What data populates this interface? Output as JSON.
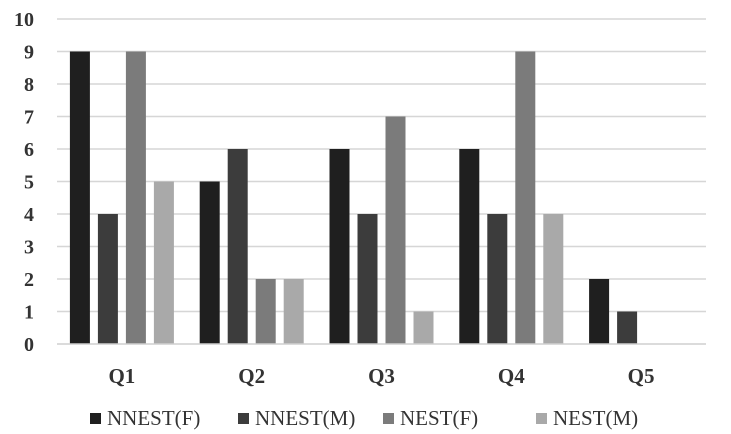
{
  "chart_data": {
    "type": "bar",
    "title": "",
    "xlabel": "",
    "ylabel": "",
    "categories": [
      "Q1",
      "Q2",
      "Q3",
      "Q4",
      "Q5"
    ],
    "ylim": [
      0,
      10
    ],
    "yticks": [
      0,
      1,
      2,
      3,
      4,
      5,
      6,
      7,
      8,
      9,
      10
    ],
    "grid": true,
    "legend_position": "bottom",
    "series": [
      {
        "name": "NNEST(F)",
        "color": "#1f1f1f",
        "values": [
          9,
          5,
          6,
          6,
          2
        ]
      },
      {
        "name": "NNEST(M)",
        "color": "#3c3c3c",
        "values": [
          4,
          6,
          4,
          4,
          1
        ]
      },
      {
        "name": "NEST(F)",
        "color": "#7b7b7b",
        "values": [
          9,
          2,
          7,
          9,
          0
        ]
      },
      {
        "name": "NEST(M)",
        "color": "#a9a9a9",
        "values": [
          5,
          2,
          1,
          4,
          0
        ]
      }
    ]
  }
}
